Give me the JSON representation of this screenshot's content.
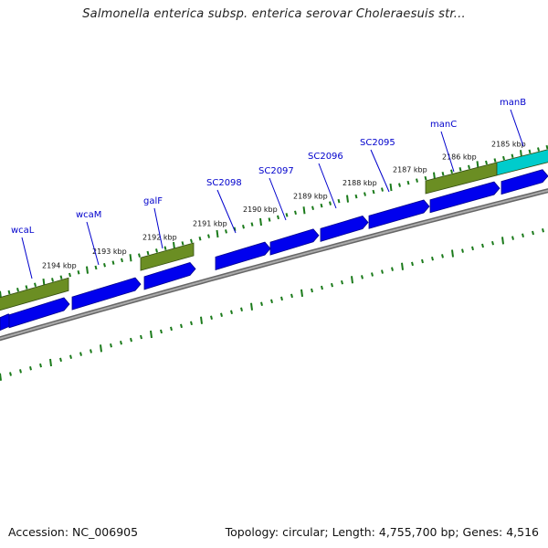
{
  "title": "Salmonella enterica subsp. enterica serovar Choleraesuis str...",
  "footer": {
    "accession": "Accession: NC_006905",
    "summary": "Topology: circular; Length: 4,755,700 bp; Genes: 4,516"
  },
  "colors": {
    "backbone": "#888888",
    "cds": "#0000ee",
    "feature_green": "#6b8e23",
    "feature_cyan": "#00cccc",
    "tick": "#1a7a1a",
    "gene_label": "#0000cc"
  },
  "kbp_labels": [
    "2194 kbp",
    "2193 kbp",
    "2192 kbp",
    "2191 kbp",
    "2190 kbp",
    "2189 kbp",
    "2188 kbp",
    "2187 kbp",
    "2186 kbp",
    "2185 kbp"
  ],
  "gene_labels": [
    "wcaL",
    "wcaM",
    "galF",
    "SC2098",
    "SC2097",
    "SC2096",
    "SC2095",
    "manC",
    "manB"
  ]
}
